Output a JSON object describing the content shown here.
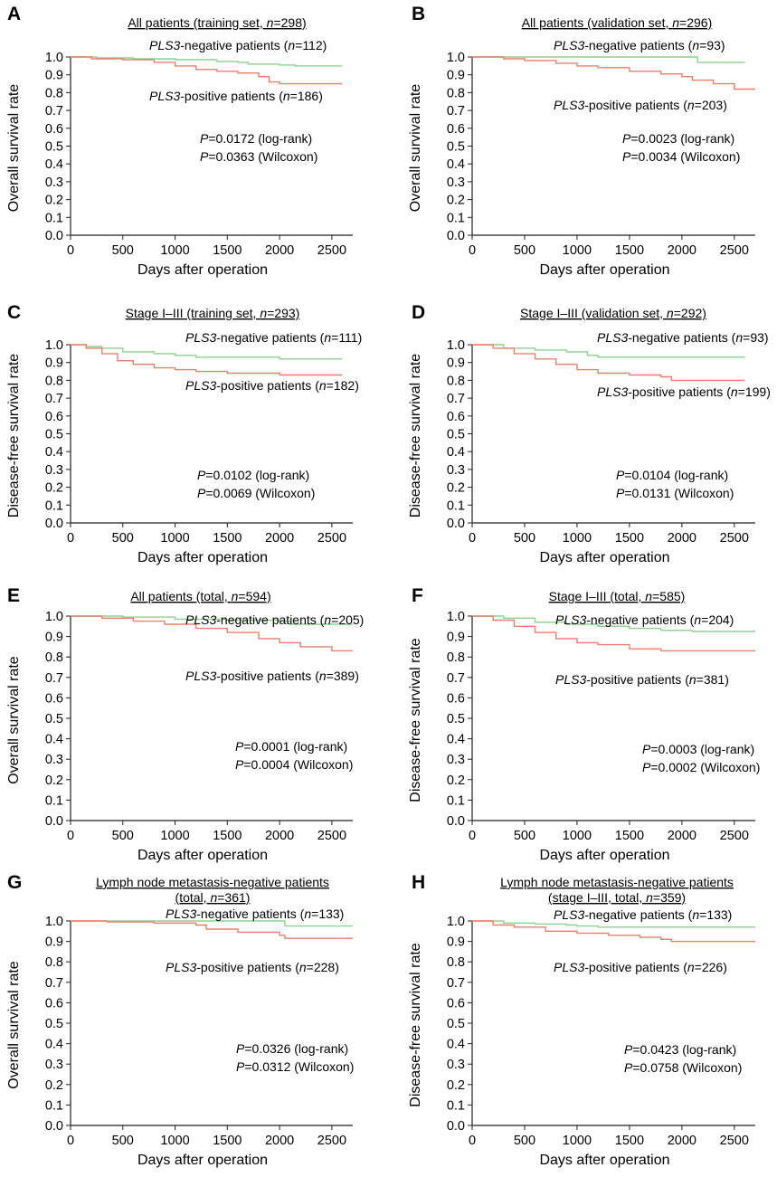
{
  "colors": {
    "negative": "#8fd18f",
    "positive": "#e8806f",
    "axis": "#222222"
  },
  "chart_data": [
    {
      "letter": "A",
      "type": "line",
      "title_lines": [
        "All patients (training set, n=298)"
      ],
      "xlabel": "Days after operation",
      "ylabel": "Overall survival rate",
      "xlim": [
        0,
        2700
      ],
      "ylim": [
        0,
        1.0
      ],
      "xticks": [
        "0",
        "500",
        "1000",
        "1500",
        "2000",
        "2500"
      ],
      "yticks": [
        "0.0",
        "0.1",
        "0.2",
        "0.3",
        "0.4",
        "0.5",
        "0.6",
        "0.7",
        "0.8",
        "0.9",
        "1.0"
      ],
      "series": [
        {
          "name": "PLS3-negative patients (n=112)",
          "color_key": "negative",
          "x": [
            0,
            250,
            600,
            1000,
            1400,
            1600,
            1700,
            2000,
            2150,
            2600
          ],
          "y": [
            1.0,
            0.995,
            0.99,
            0.985,
            0.975,
            0.97,
            0.96,
            0.955,
            0.95,
            0.95
          ]
        },
        {
          "name": "PLS3-positive patients (n=186)",
          "color_key": "positive",
          "x": [
            0,
            200,
            500,
            800,
            1000,
            1200,
            1400,
            1600,
            1800,
            1900,
            2000,
            2600
          ],
          "y": [
            1.0,
            0.99,
            0.985,
            0.97,
            0.95,
            0.93,
            0.92,
            0.91,
            0.89,
            0.86,
            0.85,
            0.85
          ]
        }
      ],
      "pvalues": [
        "P=0.0172 (log-rank)",
        "P=0.0363 (Wilcoxon)"
      ]
    },
    {
      "letter": "B",
      "type": "line",
      "title_lines": [
        "All patients (validation set, n=296)"
      ],
      "xlabel": "Days after operation",
      "ylabel": "Overall survival rate",
      "xlim": [
        0,
        2700
      ],
      "ylim": [
        0,
        1.0
      ],
      "xticks": [
        "0",
        "500",
        "1000",
        "1500",
        "2000",
        "2500"
      ],
      "yticks": [
        "0.0",
        "0.1",
        "0.2",
        "0.3",
        "0.4",
        "0.5",
        "0.6",
        "0.7",
        "0.8",
        "0.9",
        "1.0"
      ],
      "series": [
        {
          "name": "PLS3-negative patients (n=93)",
          "color_key": "negative",
          "x": [
            0,
            500,
            1000,
            1500,
            2050,
            2150,
            2600
          ],
          "y": [
            1.0,
            1.0,
            1.0,
            1.0,
            1.0,
            0.97,
            0.97
          ]
        },
        {
          "name": "PLS3-positive patients (n=203)",
          "color_key": "positive",
          "x": [
            0,
            300,
            500,
            800,
            1000,
            1200,
            1500,
            1800,
            2000,
            2100,
            2300,
            2500,
            2700
          ],
          "y": [
            1.0,
            0.99,
            0.98,
            0.965,
            0.95,
            0.94,
            0.92,
            0.905,
            0.89,
            0.87,
            0.85,
            0.82,
            0.82
          ]
        }
      ],
      "pvalues": [
        "P=0.0023 (log-rank)",
        "P=0.0034 (Wilcoxon)"
      ]
    },
    {
      "letter": "C",
      "type": "line",
      "title_lines": [
        "Stage I–III (training set, n=293)"
      ],
      "xlabel": "Days after operation",
      "ylabel": "Disease-free survival rate",
      "xlim": [
        0,
        2700
      ],
      "ylim": [
        0,
        1.0
      ],
      "xticks": [
        "0",
        "500",
        "1000",
        "1500",
        "2000",
        "2500"
      ],
      "yticks": [
        "0.0",
        "0.1",
        "0.2",
        "0.3",
        "0.4",
        "0.5",
        "0.6",
        "0.7",
        "0.8",
        "0.9",
        "1.0"
      ],
      "series": [
        {
          "name": "PLS3-negative patients (n=111)",
          "color_key": "negative",
          "x": [
            0,
            150,
            300,
            500,
            800,
            1000,
            1200,
            1500,
            2000,
            2600
          ],
          "y": [
            1.0,
            0.99,
            0.98,
            0.96,
            0.95,
            0.94,
            0.93,
            0.93,
            0.92,
            0.92
          ]
        },
        {
          "name": "PLS3-positive patients (n=182)",
          "color_key": "positive",
          "x": [
            0,
            150,
            300,
            450,
            600,
            800,
            1000,
            1200,
            1500,
            2000,
            2600
          ],
          "y": [
            1.0,
            0.98,
            0.95,
            0.91,
            0.89,
            0.87,
            0.86,
            0.85,
            0.84,
            0.83,
            0.83
          ]
        }
      ],
      "pvalues": [
        "P=0.0102 (log-rank)",
        "P=0.0069 (Wilcoxon)"
      ]
    },
    {
      "letter": "D",
      "type": "line",
      "title_lines": [
        "Stage I–III (validation set, n=292)"
      ],
      "xlabel": "Days after operation",
      "ylabel": "Disease-free survival rate",
      "xlim": [
        0,
        2700
      ],
      "ylim": [
        0,
        1.0
      ],
      "xticks": [
        "0",
        "500",
        "1000",
        "1500",
        "2000",
        "2500"
      ],
      "yticks": [
        "0.0",
        "0.1",
        "0.2",
        "0.3",
        "0.4",
        "0.5",
        "0.6",
        "0.7",
        "0.8",
        "0.9",
        "1.0"
      ],
      "series": [
        {
          "name": "PLS3-negative patients (n=93)",
          "color_key": "negative",
          "x": [
            0,
            300,
            600,
            900,
            1100,
            1200,
            2000,
            2600
          ],
          "y": [
            1.0,
            0.98,
            0.97,
            0.96,
            0.94,
            0.93,
            0.93,
            0.93
          ]
        },
        {
          "name": "PLS3-positive patients (n=199)",
          "color_key": "positive",
          "x": [
            0,
            200,
            400,
            600,
            800,
            1000,
            1200,
            1500,
            1800,
            1900,
            2600
          ],
          "y": [
            1.0,
            0.98,
            0.95,
            0.92,
            0.89,
            0.86,
            0.84,
            0.83,
            0.82,
            0.8,
            0.8
          ]
        }
      ],
      "pvalues": [
        "P=0.0104 (log-rank)",
        "P=0.0131 (Wilcoxon)"
      ]
    },
    {
      "letter": "E",
      "type": "line",
      "title_lines": [
        "All patients (total, n=594)"
      ],
      "xlabel": "Days after operation",
      "ylabel": "Overall survival rate",
      "xlim": [
        0,
        2700
      ],
      "ylim": [
        0,
        1.0
      ],
      "xticks": [
        "0",
        "500",
        "1000",
        "1500",
        "2000",
        "2500"
      ],
      "yticks": [
        "0.0",
        "0.1",
        "0.2",
        "0.3",
        "0.4",
        "0.5",
        "0.6",
        "0.7",
        "0.8",
        "0.9",
        "1.0"
      ],
      "series": [
        {
          "name": "PLS3-negative patients (n=205)",
          "color_key": "negative",
          "x": [
            0,
            500,
            1000,
            1500,
            2000,
            2100,
            2700
          ],
          "y": [
            1.0,
            0.995,
            0.985,
            0.98,
            0.975,
            0.96,
            0.96
          ]
        },
        {
          "name": "PLS3-positive patients (n=389)",
          "color_key": "positive",
          "x": [
            0,
            300,
            600,
            900,
            1200,
            1500,
            1800,
            2000,
            2200,
            2500,
            2700
          ],
          "y": [
            1.0,
            0.99,
            0.975,
            0.96,
            0.94,
            0.92,
            0.89,
            0.87,
            0.85,
            0.83,
            0.83
          ]
        }
      ],
      "pvalues": [
        "P=0.0001 (log-rank)",
        "P=0.0004 (Wilcoxon)"
      ]
    },
    {
      "letter": "F",
      "type": "line",
      "title_lines": [
        "Stage I–III (total, n=585)"
      ],
      "xlabel": "Days after operation",
      "ylabel": "Disease-free survival rate",
      "xlim": [
        0,
        2700
      ],
      "ylim": [
        0,
        1.0
      ],
      "xticks": [
        "0",
        "500",
        "1000",
        "1500",
        "2000",
        "2500"
      ],
      "yticks": [
        "0.0",
        "0.1",
        "0.2",
        "0.3",
        "0.4",
        "0.5",
        "0.6",
        "0.7",
        "0.8",
        "0.9",
        "1.0"
      ],
      "series": [
        {
          "name": "PLS3-negative patients (n=204)",
          "color_key": "negative",
          "x": [
            0,
            300,
            600,
            900,
            1200,
            1500,
            1800,
            2100,
            2700
          ],
          "y": [
            1.0,
            0.99,
            0.97,
            0.96,
            0.95,
            0.94,
            0.93,
            0.925,
            0.925
          ]
        },
        {
          "name": "PLS3-positive patients (n=381)",
          "color_key": "positive",
          "x": [
            0,
            200,
            400,
            600,
            800,
            1000,
            1200,
            1500,
            1800,
            2700
          ],
          "y": [
            1.0,
            0.98,
            0.95,
            0.92,
            0.89,
            0.87,
            0.86,
            0.84,
            0.83,
            0.83
          ]
        }
      ],
      "pvalues": [
        "P=0.0003 (log-rank)",
        "P=0.0002 (Wilcoxon)"
      ]
    },
    {
      "letter": "G",
      "type": "line",
      "title_lines": [
        "Lymph node metastasis-negative patients",
        "(total, n=361)"
      ],
      "xlabel": "Days after operation",
      "ylabel": "Overall survival rate",
      "xlim": [
        0,
        2700
      ],
      "ylim": [
        0,
        1.0
      ],
      "xticks": [
        "0",
        "500",
        "1000",
        "1500",
        "2000",
        "2500"
      ],
      "yticks": [
        "0.0",
        "0.1",
        "0.2",
        "0.3",
        "0.4",
        "0.5",
        "0.6",
        "0.7",
        "0.8",
        "0.9",
        "1.0"
      ],
      "series": [
        {
          "name": "PLS3-negative patients (n=133)",
          "color_key": "negative",
          "x": [
            0,
            1000,
            1500,
            2000,
            2050,
            2200,
            2700
          ],
          "y": [
            1.0,
            1.0,
            1.0,
            1.0,
            0.975,
            0.975,
            0.975
          ]
        },
        {
          "name": "PLS3-positive patients (n=228)",
          "color_key": "positive",
          "x": [
            0,
            350,
            800,
            1200,
            1300,
            1600,
            2000,
            2050,
            2700
          ],
          "y": [
            1.0,
            0.995,
            0.99,
            0.98,
            0.96,
            0.945,
            0.93,
            0.915,
            0.915
          ]
        }
      ],
      "pvalues": [
        "P=0.0326 (log-rank)",
        "P=0.0312 (Wilcoxon)"
      ]
    },
    {
      "letter": "H",
      "type": "line",
      "title_lines": [
        "Lymph node metastasis-negative patients",
        "(stage I–III, total, n=359)"
      ],
      "xlabel": "Days after operation",
      "ylabel": "Disease-free survival rate",
      "xlim": [
        0,
        2700
      ],
      "ylim": [
        0,
        1.0
      ],
      "xticks": [
        "0",
        "500",
        "1000",
        "1500",
        "2000",
        "2500"
      ],
      "yticks": [
        "0.0",
        "0.1",
        "0.2",
        "0.3",
        "0.4",
        "0.5",
        "0.6",
        "0.7",
        "0.8",
        "0.9",
        "1.0"
      ],
      "series": [
        {
          "name": "PLS3-negative patients (n=133)",
          "color_key": "negative",
          "x": [
            0,
            300,
            600,
            900,
            1000,
            1200,
            1800,
            2700
          ],
          "y": [
            1.0,
            0.99,
            0.985,
            0.98,
            0.975,
            0.97,
            0.97,
            0.97
          ]
        },
        {
          "name": "PLS3-positive patients (n=226)",
          "color_key": "positive",
          "x": [
            0,
            200,
            400,
            700,
            1000,
            1300,
            1600,
            1800,
            1900,
            2700
          ],
          "y": [
            1.0,
            0.98,
            0.97,
            0.95,
            0.94,
            0.93,
            0.92,
            0.91,
            0.9,
            0.9
          ]
        }
      ],
      "pvalues": [
        "P=0.0423 (log-rank)",
        "P=0.0758 (Wilcoxon)"
      ]
    }
  ]
}
